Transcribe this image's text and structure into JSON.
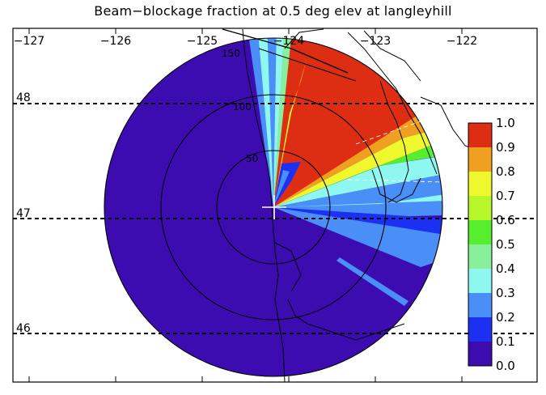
{
  "title": "Beam−blockage fraction at 0.5 deg elev at langleyhill",
  "lon_ticks": [
    "−127",
    "−126",
    "−125",
    "−124",
    "−123",
    "−122"
  ],
  "lat_ticks": [
    "48",
    "47",
    "46"
  ],
  "range_ring_labels": [
    "50",
    "100",
    "150"
  ],
  "colorbar": {
    "labels": [
      "1.0",
      "0.9",
      "0.8",
      "0.7",
      "0.6",
      "0.5",
      "0.4",
      "0.3",
      "0.2",
      "0.1",
      "0.0"
    ],
    "colors": [
      "#dd2e14",
      "#f0a020",
      "#eef82c",
      "#b8f82a",
      "#58ee30",
      "#88f09a",
      "#8ef8f0",
      "#4a8ef8",
      "#1c30f4",
      "#3c0cb0"
    ]
  },
  "colors": {
    "background_fraction": "#3c0cb0",
    "crosshair": "#ffffff"
  }
}
